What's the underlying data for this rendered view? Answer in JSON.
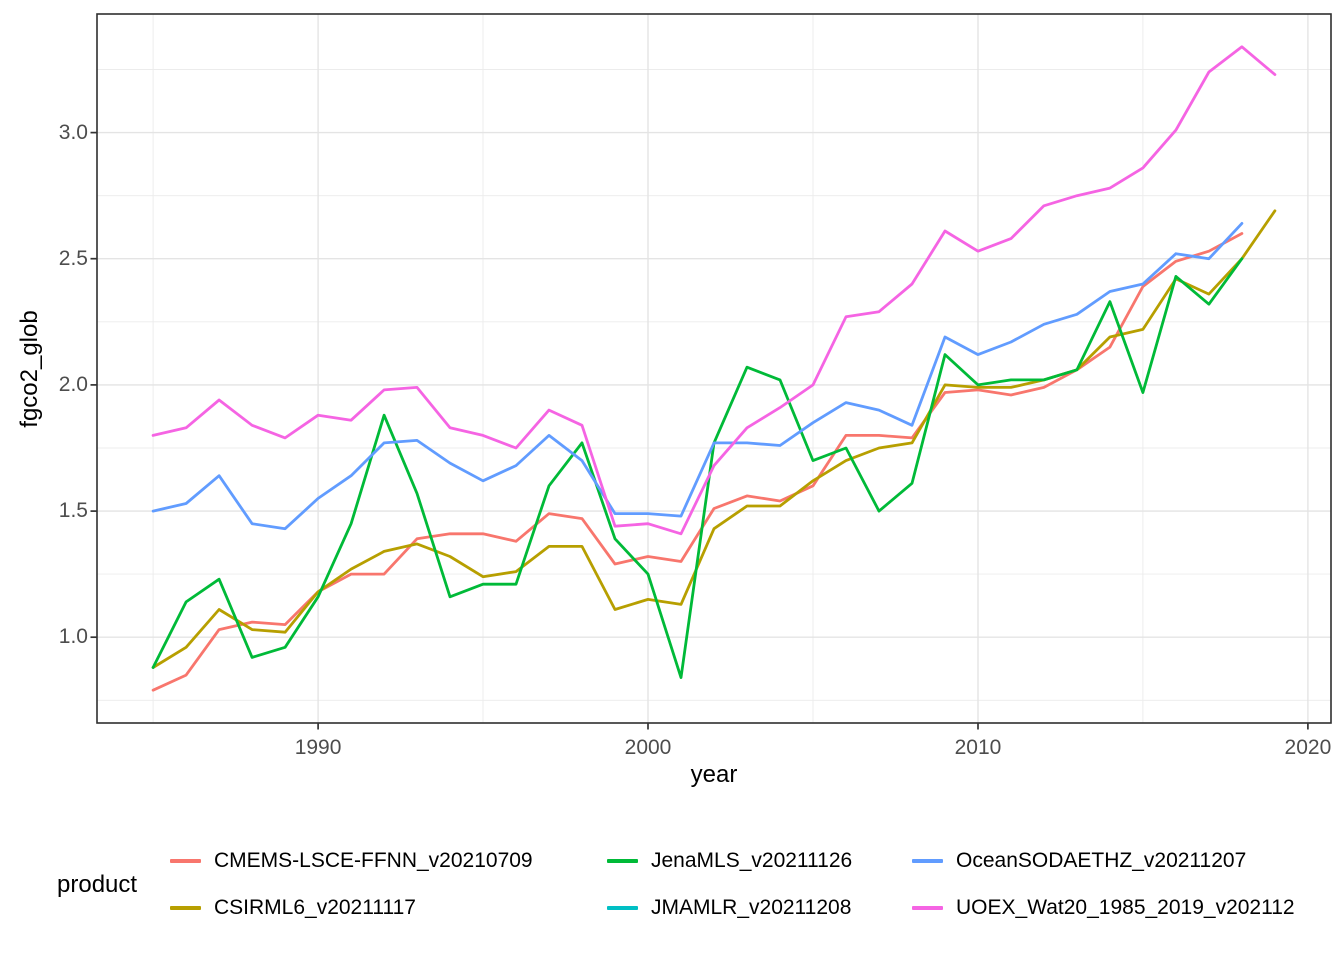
{
  "colors": {
    "background": "#FFFFFF",
    "grid_major": "#E4E4E4",
    "grid_minor": "#ECECEC",
    "panel_border": "#2F2F2F",
    "tick_mark": "#333333",
    "tick_text": "#4D4D4D",
    "axis_title": "#000000"
  },
  "chart_data": {
    "type": "line",
    "title": "",
    "xlabel": "year",
    "ylabel": "fgco2_glob",
    "legend_title": "product",
    "legend_position": "bottom",
    "grid": true,
    "x_range": [
      1983.3,
      2020.7
    ],
    "y_range": [
      0.66,
      3.47
    ],
    "x_ticks": [
      {
        "value": 1990,
        "label": "1990"
      },
      {
        "value": 2000,
        "label": "2000"
      },
      {
        "value": 2010,
        "label": "2010"
      },
      {
        "value": 2020,
        "label": "2020"
      }
    ],
    "y_ticks": [
      {
        "value": 1.0,
        "label": "1.0"
      },
      {
        "value": 1.5,
        "label": "1.5"
      },
      {
        "value": 2.0,
        "label": "2.0"
      },
      {
        "value": 2.5,
        "label": "2.5"
      },
      {
        "value": 3.0,
        "label": "3.0"
      }
    ],
    "x_minor": [
      1985,
      1995,
      2005,
      2015
    ],
    "y_minor": [
      0.75,
      1.25,
      1.75,
      2.25,
      2.75,
      3.25
    ],
    "years": [
      1985,
      1986,
      1987,
      1988,
      1989,
      1990,
      1991,
      1992,
      1993,
      1994,
      1995,
      1996,
      1997,
      1998,
      1999,
      2000,
      2001,
      2002,
      2003,
      2004,
      2005,
      2006,
      2007,
      2008,
      2009,
      2010,
      2011,
      2012,
      2013,
      2014,
      2015,
      2016,
      2017,
      2018,
      2019
    ],
    "series": [
      {
        "name": "CMEMS-LSCE-FFNN_v20210709",
        "color": "#F8766D",
        "values": [
          0.79,
          0.85,
          1.03,
          1.06,
          1.05,
          1.18,
          1.25,
          1.25,
          1.39,
          1.41,
          1.41,
          1.38,
          1.49,
          1.47,
          1.29,
          1.32,
          1.3,
          1.51,
          1.56,
          1.54,
          1.6,
          1.8,
          1.8,
          1.79,
          1.97,
          1.98,
          1.96,
          1.99,
          2.06,
          2.15,
          2.39,
          2.49,
          2.53,
          2.6
        ]
      },
      {
        "name": "CSIRML6_v20211117",
        "color": "#B79F00",
        "values": [
          0.88,
          0.96,
          1.11,
          1.03,
          1.02,
          1.18,
          1.27,
          1.34,
          1.37,
          1.32,
          1.24,
          1.26,
          1.36,
          1.36,
          1.11,
          1.15,
          1.13,
          1.43,
          1.52,
          1.52,
          1.62,
          1.7,
          1.75,
          1.77,
          2.0,
          1.99,
          1.99,
          2.02,
          2.06,
          2.19,
          2.22,
          2.42,
          2.36,
          2.5,
          2.69
        ]
      },
      {
        "name": "JenaMLS_v20211126",
        "color": "#00BA38",
        "values": [
          0.88,
          1.14,
          1.23,
          0.92,
          0.96,
          1.16,
          1.45,
          1.88,
          1.57,
          1.16,
          1.21,
          1.21,
          1.6,
          1.77,
          1.39,
          1.25,
          0.84,
          1.77,
          2.07,
          2.02,
          1.7,
          1.75,
          1.5,
          1.61,
          2.12,
          2.0,
          2.02,
          2.02,
          2.06,
          2.33,
          1.97,
          2.43,
          2.32,
          2.5
        ]
      },
      {
        "name": "JMAMLR_v20211208",
        "color": "#00BFC4",
        "values": []
      },
      {
        "name": "OceanSODAETHZ_v20211207",
        "color": "#619CFF",
        "values": [
          1.5,
          1.53,
          1.64,
          1.45,
          1.43,
          1.55,
          1.64,
          1.77,
          1.78,
          1.69,
          1.62,
          1.68,
          1.8,
          1.7,
          1.49,
          1.49,
          1.48,
          1.77,
          1.77,
          1.76,
          1.85,
          1.93,
          1.9,
          1.84,
          2.19,
          2.12,
          2.17,
          2.24,
          2.28,
          2.37,
          2.4,
          2.52,
          2.5,
          2.64
        ]
      },
      {
        "name": "UOEX_Wat20_1985_2019_v202112",
        "color": "#F564E3",
        "values": [
          1.8,
          1.83,
          1.94,
          1.84,
          1.79,
          1.88,
          1.86,
          1.98,
          1.99,
          1.83,
          1.8,
          1.75,
          1.9,
          1.84,
          1.44,
          1.45,
          1.41,
          1.68,
          1.83,
          1.91,
          2.0,
          2.27,
          2.29,
          2.4,
          2.61,
          2.53,
          2.58,
          2.71,
          2.75,
          2.78,
          2.86,
          3.01,
          3.24,
          3.34,
          3.23
        ]
      }
    ]
  }
}
